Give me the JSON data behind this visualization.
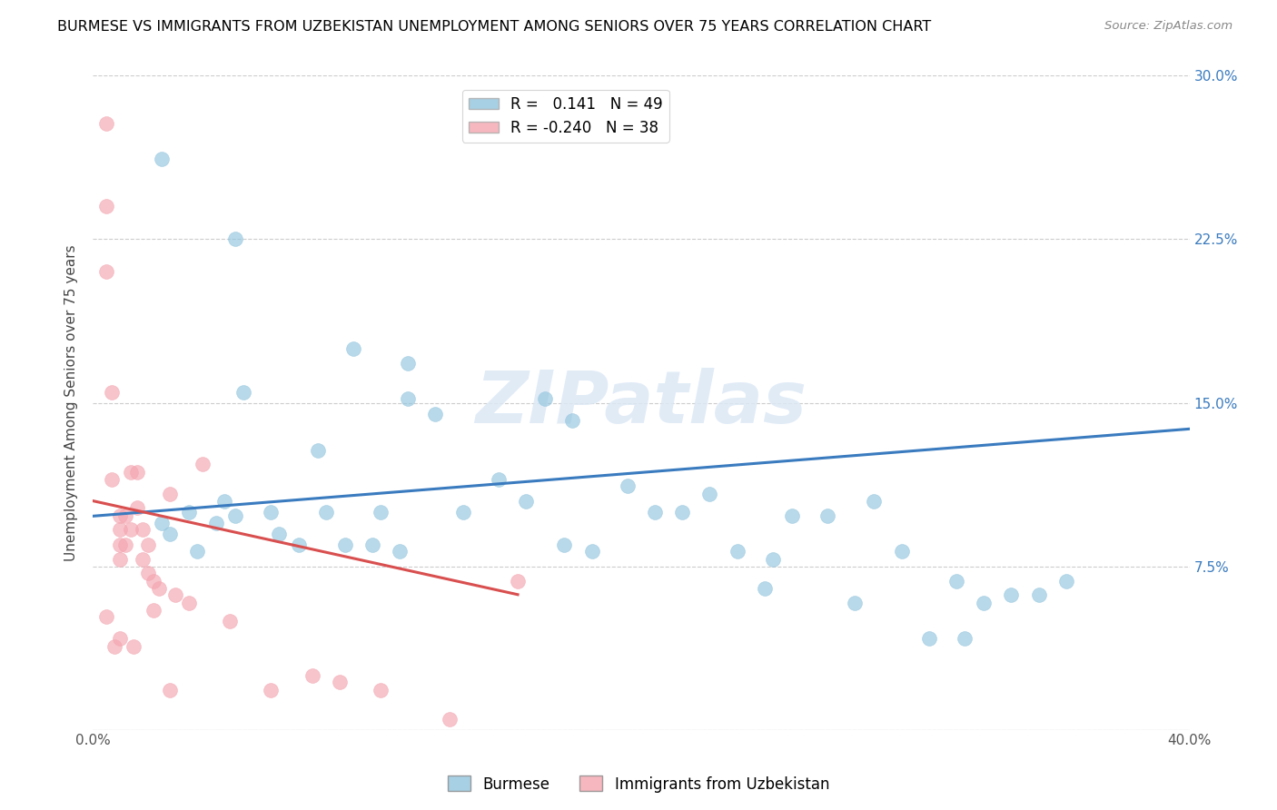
{
  "title": "BURMESE VS IMMIGRANTS FROM UZBEKISTAN UNEMPLOYMENT AMONG SENIORS OVER 75 YEARS CORRELATION CHART",
  "source": "Source: ZipAtlas.com",
  "ylabel": "Unemployment Among Seniors over 75 years",
  "xlim": [
    0.0,
    0.4
  ],
  "ylim": [
    0.0,
    0.3
  ],
  "xticks": [
    0.0,
    0.05,
    0.1,
    0.15,
    0.2,
    0.25,
    0.3,
    0.35,
    0.4
  ],
  "yticks": [
    0.0,
    0.075,
    0.15,
    0.225,
    0.3
  ],
  "right_ytick_labels": [
    "",
    "7.5%",
    "15.0%",
    "22.5%",
    "30.0%"
  ],
  "left_ytick_labels": [
    "",
    "",
    "",
    "",
    ""
  ],
  "xtick_labels": [
    "0.0%",
    "",
    "",
    "",
    "",
    "",
    "",
    "",
    "40.0%"
  ],
  "blue_R": 0.141,
  "blue_N": 49,
  "pink_R": -0.24,
  "pink_N": 38,
  "blue_color": "#92c5de",
  "pink_color": "#f4a5b0",
  "blue_line_color": "#3a7bbf",
  "pink_line_color": "#d94f4f",
  "watermark_color": "#dce8f5",
  "watermark": "ZIPatlas",
  "blue_line_x0": 0.0,
  "blue_line_y0": 0.098,
  "blue_line_x1": 0.4,
  "blue_line_y1": 0.138,
  "pink_line_x0": 0.0,
  "pink_line_x1": 0.155,
  "pink_line_y0": 0.105,
  "pink_line_y1": 0.062,
  "blue_scatter_x": [
    0.045,
    0.055,
    0.028,
    0.035,
    0.048,
    0.065,
    0.075,
    0.085,
    0.095,
    0.105,
    0.115,
    0.115,
    0.125,
    0.135,
    0.165,
    0.175,
    0.195,
    0.205,
    0.215,
    0.225,
    0.235,
    0.245,
    0.255,
    0.285,
    0.295,
    0.315,
    0.325,
    0.335,
    0.345,
    0.355,
    0.025,
    0.038,
    0.052,
    0.068,
    0.082,
    0.092,
    0.102,
    0.112,
    0.148,
    0.158,
    0.172,
    0.182,
    0.248,
    0.268,
    0.278,
    0.305,
    0.318,
    0.025,
    0.052
  ],
  "blue_scatter_y": [
    0.095,
    0.155,
    0.09,
    0.1,
    0.105,
    0.1,
    0.085,
    0.1,
    0.175,
    0.1,
    0.152,
    0.168,
    0.145,
    0.1,
    0.152,
    0.142,
    0.112,
    0.1,
    0.1,
    0.108,
    0.082,
    0.065,
    0.098,
    0.105,
    0.082,
    0.068,
    0.058,
    0.062,
    0.062,
    0.068,
    0.095,
    0.082,
    0.098,
    0.09,
    0.128,
    0.085,
    0.085,
    0.082,
    0.115,
    0.105,
    0.085,
    0.082,
    0.078,
    0.098,
    0.058,
    0.042,
    0.042,
    0.262,
    0.225
  ],
  "pink_scatter_x": [
    0.005,
    0.005,
    0.005,
    0.007,
    0.007,
    0.01,
    0.01,
    0.01,
    0.01,
    0.012,
    0.012,
    0.014,
    0.014,
    0.016,
    0.016,
    0.018,
    0.018,
    0.02,
    0.02,
    0.022,
    0.022,
    0.024,
    0.028,
    0.03,
    0.035,
    0.04,
    0.05,
    0.065,
    0.08,
    0.09,
    0.105,
    0.13,
    0.155,
    0.005,
    0.008,
    0.01,
    0.015,
    0.028
  ],
  "pink_scatter_y": [
    0.278,
    0.24,
    0.21,
    0.155,
    0.115,
    0.098,
    0.092,
    0.085,
    0.078,
    0.098,
    0.085,
    0.118,
    0.092,
    0.118,
    0.102,
    0.092,
    0.078,
    0.085,
    0.072,
    0.068,
    0.055,
    0.065,
    0.108,
    0.062,
    0.058,
    0.122,
    0.05,
    0.018,
    0.025,
    0.022,
    0.018,
    0.005,
    0.068,
    0.052,
    0.038,
    0.042,
    0.038,
    0.018
  ]
}
